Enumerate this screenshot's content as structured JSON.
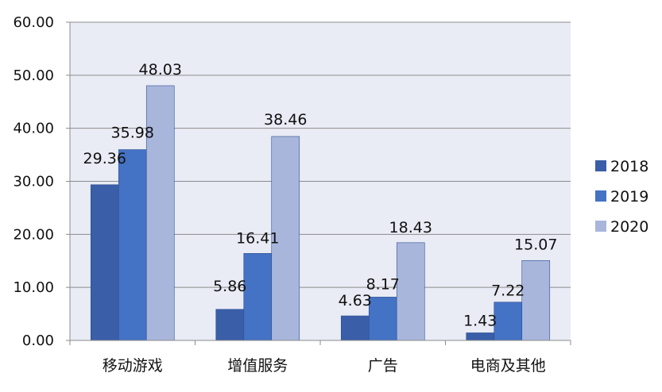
{
  "chart_data": {
    "type": "bar",
    "categories": [
      "移动游戏",
      "增值服务",
      "广告",
      "电商及其他"
    ],
    "series": [
      {
        "name": "2018",
        "values": [
          29.36,
          5.86,
          4.63,
          1.43
        ],
        "color": "#3a5ea8"
      },
      {
        "name": "2019",
        "values": [
          35.98,
          16.41,
          8.17,
          7.22
        ],
        "color": "#4472c4"
      },
      {
        "name": "2020",
        "values": [
          48.03,
          38.46,
          18.43,
          15.07
        ],
        "color": "#a9b6dc"
      }
    ],
    "data_labels": [
      [
        "29.36",
        "5.86",
        "4.63",
        "1.43"
      ],
      [
        "35.98",
        "16.41",
        "8.17",
        "7.22"
      ],
      [
        "48.03",
        "38.46",
        "18.43",
        "15.07"
      ]
    ],
    "y_ticks": [
      "0.00",
      "10.00",
      "20.00",
      "30.00",
      "40.00",
      "50.00",
      "60.00"
    ],
    "ylim": [
      0,
      60
    ],
    "title": "",
    "xlabel": "",
    "ylabel": "",
    "grid": true,
    "legend_position": "right",
    "plot_background": "#e9ebf5"
  }
}
